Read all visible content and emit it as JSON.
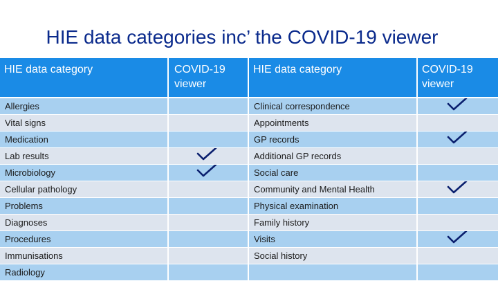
{
  "title": "HIE data categories inc’ the COVID-19 viewer",
  "headers": {
    "col1": "HIE data category",
    "col2": "COVID-19 viewer",
    "col3": "HIE data category",
    "col4": "COVID-19 viewer"
  },
  "rows": [
    {
      "left": "Allergies",
      "left_tick": false,
      "right": "Clinical correspondence",
      "right_tick": true
    },
    {
      "left": "Vital signs",
      "left_tick": false,
      "right": "Appointments",
      "right_tick": false
    },
    {
      "left": "Medication",
      "left_tick": false,
      "right": "GP records",
      "right_tick": true
    },
    {
      "left": "Lab results",
      "left_tick": true,
      "right": "Additional GP records",
      "right_tick": false
    },
    {
      "left": "Microbiology",
      "left_tick": true,
      "right": "Social care",
      "right_tick": false
    },
    {
      "left": "Cellular pathology",
      "left_tick": false,
      "right": "Community and Mental Health",
      "right_tick": true
    },
    {
      "left": "Problems",
      "left_tick": false,
      "right": "Physical examination",
      "right_tick": false
    },
    {
      "left": "Diagnoses",
      "left_tick": false,
      "right": "Family history",
      "right_tick": false
    },
    {
      "left": "Procedures",
      "left_tick": false,
      "right": "Visits",
      "right_tick": true
    },
    {
      "left": "Immunisations",
      "left_tick": false,
      "right": "Social history",
      "right_tick": false
    },
    {
      "left": "Radiology",
      "left_tick": false,
      "right": "",
      "right_tick": false
    }
  ],
  "colors": {
    "title": "#0a2a8c",
    "header_bg": "#1a8be6",
    "row_blue": "#a8d0f0",
    "row_grey": "#dde4ee",
    "tick": "#0a1f6e"
  }
}
